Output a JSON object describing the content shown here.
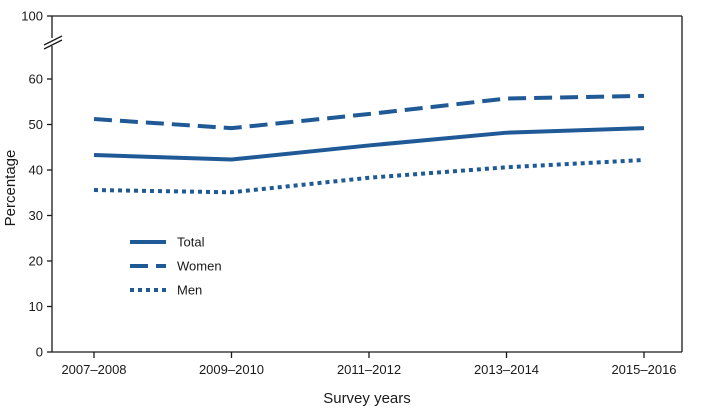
{
  "chart_data": {
    "type": "line",
    "title": "",
    "xlabel": "Survey years",
    "ylabel": "Percentage",
    "categories": [
      "2007–2008",
      "2009–2010",
      "2011–2012",
      "2013–2014",
      "2015–2016"
    ],
    "yticks": [
      0,
      10,
      20,
      30,
      40,
      50,
      60,
      100
    ],
    "ylim": [
      0,
      100
    ],
    "axis_break": true,
    "grid": false,
    "legend_position": "left-lower",
    "color": "#1f5a96",
    "series": [
      {
        "name": "Total",
        "style": "solid",
        "values": [
          43.3,
          42.3,
          45.4,
          48.2,
          49.2
        ]
      },
      {
        "name": "Women",
        "style": "dashed",
        "values": [
          51.2,
          49.2,
          52.3,
          55.7,
          56.3
        ]
      },
      {
        "name": "Men",
        "style": "dotted",
        "values": [
          35.6,
          35.1,
          38.3,
          40.6,
          42.2
        ]
      }
    ]
  }
}
